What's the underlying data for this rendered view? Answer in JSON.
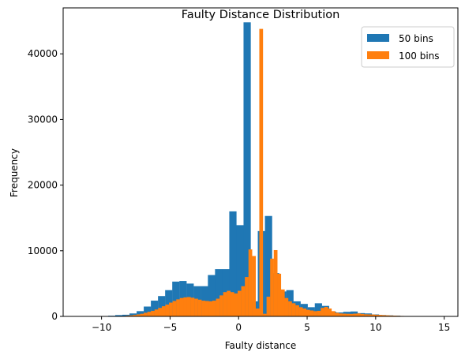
{
  "chart_data": {
    "type": "bar",
    "title": "Faulty Distance Distribution",
    "xlabel": "Faulty distance",
    "ylabel": "Frequency",
    "xlim": [
      -12.8,
      16.0
    ],
    "ylim": [
      0,
      47000
    ],
    "xticks": [
      -10,
      -5,
      0,
      5,
      10,
      15
    ],
    "yticks": [
      0,
      10000,
      20000,
      30000,
      40000
    ],
    "grid": false,
    "legend": "top-right",
    "series": [
      {
        "name": "50 bins",
        "color": "#1f77b4",
        "bin_start": -11.6,
        "bin_width": 0.52,
        "values": [
          0,
          0,
          0,
          50,
          100,
          200,
          250,
          450,
          800,
          1500,
          2400,
          3100,
          4000,
          5300,
          5400,
          5000,
          4600,
          4600,
          6300,
          7200,
          7200,
          16000,
          13900,
          44800,
          2300,
          13000,
          15300,
          6600,
          3800,
          4000,
          2300,
          1900,
          1400,
          2000,
          1600,
          700,
          600,
          700,
          750,
          500,
          450,
          300,
          200,
          150,
          100,
          60,
          40,
          20,
          10,
          0
        ]
      },
      {
        "name": "100 bins",
        "color": "#ff7f0e",
        "bin_start": -11.4,
        "bin_width": 0.2635,
        "values": [
          0,
          0,
          0,
          0,
          0,
          0,
          0,
          0,
          0,
          20,
          40,
          70,
          110,
          160,
          220,
          300,
          400,
          550,
          700,
          850,
          1050,
          1300,
          1550,
          1800,
          2100,
          2350,
          2600,
          2800,
          2900,
          2950,
          2850,
          2700,
          2550,
          2400,
          2350,
          2300,
          2400,
          2700,
          3200,
          3700,
          3900,
          3700,
          3500,
          3900,
          4600,
          6000,
          10200,
          9200,
          1200,
          43800,
          400,
          3000,
          8800,
          10100,
          6500,
          4100,
          2800,
          2300,
          2000,
          1700,
          1400,
          1200,
          1000,
          900,
          800,
          850,
          1300,
          1450,
          1200,
          800,
          550,
          450,
          420,
          400,
          380,
          420,
          450,
          380,
          320,
          300,
          280,
          250,
          220,
          190,
          160,
          130,
          110,
          90,
          70,
          55,
          40,
          30,
          20,
          12,
          8,
          5,
          3,
          2,
          1,
          0
        ]
      }
    ]
  }
}
